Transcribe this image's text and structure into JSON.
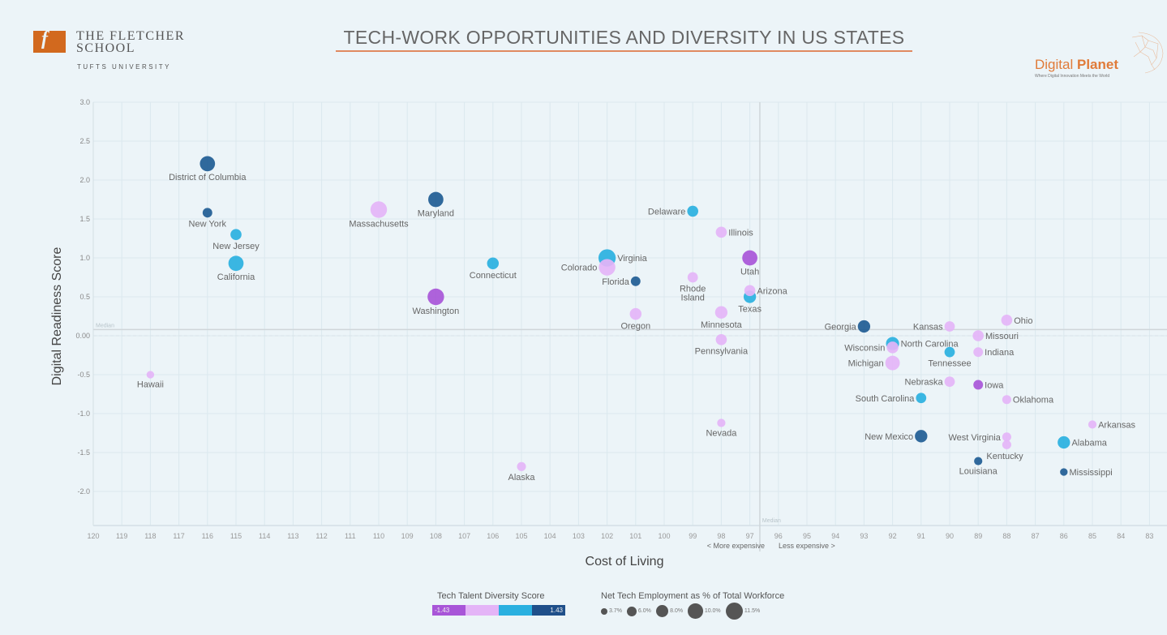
{
  "header": {
    "school_mark": "f",
    "school_name_line1": "THE FLETCHER",
    "school_name_line2": "SCHOOL",
    "school_sub": "TUFTS UNIVERSITY",
    "title": "TECH-WORK OPPORTUNITIES AND DIVERSITY IN US STATES",
    "brand_name_light": "Digital",
    "brand_name_bold": "Planet",
    "brand_tagline": "Where Digital Innovation Meets the World"
  },
  "colors": {
    "background": "#ecf4f8",
    "accent": "#e07b39",
    "diversity_scale": [
      "#a855d8",
      "#e4b4f7",
      "#2ab0e0",
      "#1f5c94"
    ]
  },
  "legend": {
    "color_title": "Tech Talent Diversity Score",
    "color_min_label": "-1.43",
    "color_max_label": "1.43",
    "size_title": "Net Tech Employment as % of Total Workforce",
    "size_items": [
      {
        "label": "3.7%",
        "value": 3.7
      },
      {
        "label": "6.0%",
        "value": 6.0
      },
      {
        "label": "8.0%",
        "value": 8.0
      },
      {
        "label": "10.0%",
        "value": 10.0
      },
      {
        "label": "11.5%",
        "value": 11.5
      }
    ]
  },
  "chart_data": {
    "type": "scatter",
    "title": "TECH-WORK OPPORTUNITIES AND DIVERSITY IN US STATES",
    "xlabel": "Cost of Living",
    "ylabel": "Digital Readiness Score",
    "xlim": [
      120,
      82.4
    ],
    "ylim": [
      -2.45,
      3.0
    ],
    "x_reversed": true,
    "grid": true,
    "xticks": [
      "120",
      "119",
      "118",
      "117",
      "116",
      "115",
      "114",
      "113",
      "112",
      "111",
      "110",
      "109",
      "108",
      "107",
      "106",
      "105",
      "104",
      "103",
      "102",
      "101",
      "100",
      "99",
      "98",
      "97",
      "96",
      "95",
      "94",
      "93",
      "92",
      "91",
      "90",
      "89",
      "88",
      "87",
      "86",
      "85",
      "84",
      "83"
    ],
    "yticks": [
      {
        "value": 3.0,
        "label": "3.0"
      },
      {
        "value": 2.5,
        "label": "2.5"
      },
      {
        "value": 2.0,
        "label": "2.0"
      },
      {
        "value": 1.5,
        "label": "1.5"
      },
      {
        "value": 1.0,
        "label": "1.0"
      },
      {
        "value": 0.5,
        "label": "0.5"
      },
      {
        "value": 0.0,
        "label": "0.00"
      },
      {
        "value": -0.5,
        "label": "-0.5"
      },
      {
        "value": -1.0,
        "label": "-1.0"
      },
      {
        "value": -1.5,
        "label": "-1.5"
      },
      {
        "value": -2.0,
        "label": "-2.0"
      }
    ],
    "median_x": 96.65,
    "median_y": 0.08,
    "median_label": "Median",
    "x_annotation_left": "< More expensive",
    "x_annotation_right": "Less expensive >",
    "color_legend": "Tech Talent Diversity Score (-1.43 to 1.43)",
    "size_legend": "Net Tech Employment as % of Total Workforce",
    "points": [
      {
        "name": "District of Columbia",
        "x": 116,
        "y": 2.21,
        "diversity_bin": 3,
        "size": 10.0,
        "label_pos": "below"
      },
      {
        "name": "New York",
        "x": 116,
        "y": 1.58,
        "diversity_bin": 3,
        "size": 6.0,
        "label_pos": "below"
      },
      {
        "name": "New Jersey",
        "x": 115,
        "y": 1.3,
        "diversity_bin": 2,
        "size": 7.0,
        "label_pos": "below"
      },
      {
        "name": "California",
        "x": 115,
        "y": 0.93,
        "diversity_bin": 2,
        "size": 10.0,
        "label_pos": "below"
      },
      {
        "name": "Massachusetts",
        "x": 110,
        "y": 1.62,
        "diversity_bin": 1,
        "size": 11.0,
        "label_pos": "below"
      },
      {
        "name": "Maryland",
        "x": 108,
        "y": 1.75,
        "diversity_bin": 3,
        "size": 10.0,
        "label_pos": "below"
      },
      {
        "name": "Washington",
        "x": 108,
        "y": 0.5,
        "diversity_bin": 0,
        "size": 11.0,
        "label_pos": "below"
      },
      {
        "name": "Hawaii",
        "x": 118,
        "y": -0.5,
        "diversity_bin": 1,
        "size": 4.5,
        "label_pos": "below"
      },
      {
        "name": "Connecticut",
        "x": 106,
        "y": 0.93,
        "diversity_bin": 2,
        "size": 7.5,
        "label_pos": "below"
      },
      {
        "name": "Alaska",
        "x": 105,
        "y": -1.68,
        "diversity_bin": 1,
        "size": 5.5,
        "label_pos": "below"
      },
      {
        "name": "Virginia",
        "x": 102,
        "y": 1.0,
        "diversity_bin": 2,
        "size": 11.5,
        "label_pos": "right"
      },
      {
        "name": "Colorado",
        "x": 102,
        "y": 0.88,
        "diversity_bin": 1,
        "size": 11.0,
        "label_pos": "left"
      },
      {
        "name": "Florida",
        "x": 101,
        "y": 0.7,
        "diversity_bin": 3,
        "size": 6.0,
        "label_pos": "left"
      },
      {
        "name": "Oregon",
        "x": 101,
        "y": 0.28,
        "diversity_bin": 1,
        "size": 7.5,
        "label_pos": "below"
      },
      {
        "name": "Delaware",
        "x": 99,
        "y": 1.6,
        "diversity_bin": 2,
        "size": 7.0,
        "label_pos": "left"
      },
      {
        "name": "Rhode Island",
        "x": 99,
        "y": 0.75,
        "diversity_bin": 1,
        "size": 6.5,
        "label_pos": "below"
      },
      {
        "name": "Illinois",
        "x": 98,
        "y": 1.33,
        "diversity_bin": 1,
        "size": 7.0,
        "label_pos": "right"
      },
      {
        "name": "Minnesota",
        "x": 98,
        "y": 0.3,
        "diversity_bin": 1,
        "size": 8.0,
        "label_pos": "below"
      },
      {
        "name": "Pennsylvania",
        "x": 98,
        "y": -0.05,
        "diversity_bin": 1,
        "size": 7.0,
        "label_pos": "below"
      },
      {
        "name": "Nevada",
        "x": 98,
        "y": -1.12,
        "diversity_bin": 1,
        "size": 5.0,
        "label_pos": "below"
      },
      {
        "name": "Utah",
        "x": 97,
        "y": 1.0,
        "diversity_bin": 0,
        "size": 10.0,
        "label_pos": "below"
      },
      {
        "name": "Arizona",
        "x": 97,
        "y": 0.58,
        "diversity_bin": 1,
        "size": 7.0,
        "label_pos": "right"
      },
      {
        "name": "Texas",
        "x": 97,
        "y": 0.5,
        "diversity_bin": 2,
        "size": 8.0,
        "label_pos": "below"
      },
      {
        "name": "Georgia",
        "x": 93,
        "y": 0.12,
        "diversity_bin": 3,
        "size": 8.0,
        "label_pos": "left"
      },
      {
        "name": "North Carolina",
        "x": 92,
        "y": -0.1,
        "diversity_bin": 2,
        "size": 8.5,
        "label_pos": "right"
      },
      {
        "name": "Wisconsin",
        "x": 92,
        "y": -0.15,
        "diversity_bin": 1,
        "size": 7.5,
        "label_pos": "left"
      },
      {
        "name": "Michigan",
        "x": 92,
        "y": -0.35,
        "diversity_bin": 1,
        "size": 9.5,
        "label_pos": "left"
      },
      {
        "name": "Kansas",
        "x": 90,
        "y": 0.12,
        "diversity_bin": 1,
        "size": 6.5,
        "label_pos": "left"
      },
      {
        "name": "Tennessee",
        "x": 90,
        "y": -0.21,
        "diversity_bin": 2,
        "size": 6.5,
        "label_pos": "below"
      },
      {
        "name": "Nebraska",
        "x": 90,
        "y": -0.59,
        "diversity_bin": 1,
        "size": 6.5,
        "label_pos": "left"
      },
      {
        "name": "South Carolina",
        "x": 91,
        "y": -0.8,
        "diversity_bin": 2,
        "size": 6.5,
        "label_pos": "left"
      },
      {
        "name": "Missouri",
        "x": 89,
        "y": 0.0,
        "diversity_bin": 1,
        "size": 7.0,
        "label_pos": "right"
      },
      {
        "name": "Indiana",
        "x": 89,
        "y": -0.21,
        "diversity_bin": 1,
        "size": 6.0,
        "label_pos": "right"
      },
      {
        "name": "Iowa",
        "x": 89,
        "y": -0.63,
        "diversity_bin": 0,
        "size": 6.0,
        "label_pos": "right"
      },
      {
        "name": "Ohio",
        "x": 88,
        "y": 0.2,
        "diversity_bin": 1,
        "size": 7.0,
        "label_pos": "right"
      },
      {
        "name": "Oklahoma",
        "x": 88,
        "y": -0.82,
        "diversity_bin": 1,
        "size": 5.5,
        "label_pos": "right"
      },
      {
        "name": "New Mexico",
        "x": 91,
        "y": -1.29,
        "diversity_bin": 3,
        "size": 8.0,
        "label_pos": "left"
      },
      {
        "name": "West Virginia",
        "x": 88,
        "y": -1.3,
        "diversity_bin": 1,
        "size": 5.5,
        "label_pos": "left"
      },
      {
        "name": "Kentucky",
        "x": 88,
        "y": -1.4,
        "diversity_bin": 1,
        "size": 5.5,
        "label_pos": "below-right"
      },
      {
        "name": "Louisiana",
        "x": 89,
        "y": -1.61,
        "diversity_bin": 3,
        "size": 5.0,
        "label_pos": "below"
      },
      {
        "name": "Arkansas",
        "x": 85,
        "y": -1.14,
        "diversity_bin": 1,
        "size": 5.0,
        "label_pos": "right"
      },
      {
        "name": "Alabama",
        "x": 86,
        "y": -1.37,
        "diversity_bin": 2,
        "size": 8.0,
        "label_pos": "right"
      },
      {
        "name": "Mississippi",
        "x": 86,
        "y": -1.75,
        "diversity_bin": 3,
        "size": 4.5,
        "label_pos": "right"
      }
    ]
  }
}
